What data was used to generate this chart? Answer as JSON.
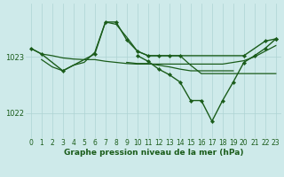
{
  "title": "Graphe pression niveau de la mer (hPa)",
  "bg_color": "#ceeaea",
  "grid_color": "#aed4d4",
  "line_color": "#1a5c1a",
  "xlim": [
    -0.5,
    23.5
  ],
  "ylim": [
    1021.55,
    1023.95
  ],
  "yticks": [
    1022,
    1023
  ],
  "series": [
    {
      "x": [
        0,
        1,
        3,
        6,
        7,
        8,
        9,
        10,
        11,
        12,
        13,
        14,
        20,
        22,
        23
      ],
      "y": [
        1023.15,
        1023.05,
        1022.75,
        1023.05,
        1023.62,
        1023.62,
        1023.3,
        1023.1,
        1023.02,
        1023.02,
        1023.02,
        1023.02,
        1023.02,
        1023.28,
        1023.32
      ],
      "marker": true,
      "lw": 1.0
    },
    {
      "x": [
        0,
        1,
        2,
        3,
        4,
        5,
        6,
        7,
        8,
        9,
        10,
        11,
        12,
        13,
        14,
        15,
        16,
        17,
        18,
        19,
        20,
        21,
        22,
        23
      ],
      "y": [
        1023.15,
        1023.05,
        1023.02,
        1022.98,
        1022.96,
        1022.95,
        1022.95,
        1022.92,
        1022.9,
        1022.88,
        1022.87,
        1022.87,
        1022.87,
        1022.87,
        1022.87,
        1022.87,
        1022.87,
        1022.87,
        1022.87,
        1022.9,
        1022.93,
        1023.0,
        1023.1,
        1023.2
      ],
      "marker": false,
      "lw": 0.9
    },
    {
      "x": [
        1,
        2,
        3,
        4,
        5,
        6,
        7,
        8,
        9,
        10,
        11,
        12,
        13,
        14,
        15,
        16,
        17,
        18,
        19,
        20,
        21,
        22,
        23
      ],
      "y": [
        1022.95,
        1022.82,
        1022.75,
        1022.85,
        1022.9,
        1023.08,
        1023.62,
        1023.58,
        1023.35,
        1023.1,
        1023.02,
        1023.02,
        1023.02,
        1023.02,
        1022.85,
        1022.7,
        1022.7,
        1022.7,
        1022.7,
        1022.7,
        1022.7,
        1022.7,
        1022.7
      ],
      "marker": false,
      "lw": 0.9
    },
    {
      "x": [
        10,
        11,
        12,
        13,
        14,
        15,
        16,
        17,
        18,
        19,
        20,
        21,
        22,
        23
      ],
      "y": [
        1023.02,
        1022.92,
        1022.78,
        1022.68,
        1022.55,
        1022.22,
        1022.22,
        1021.85,
        1022.22,
        1022.55,
        1022.9,
        1023.02,
        1023.15,
        1023.32
      ],
      "marker": true,
      "lw": 1.0
    },
    {
      "x": [
        9,
        10,
        11,
        12,
        13,
        14,
        15,
        16,
        17,
        18,
        19
      ],
      "y": [
        1022.9,
        1022.88,
        1022.88,
        1022.85,
        1022.82,
        1022.78,
        1022.75,
        1022.75,
        1022.75,
        1022.75,
        1022.75
      ],
      "marker": false,
      "lw": 0.9
    }
  ],
  "tick_fontsize": 5.5,
  "title_fontsize": 6.5,
  "xlabel_color": "#1a5c1a"
}
